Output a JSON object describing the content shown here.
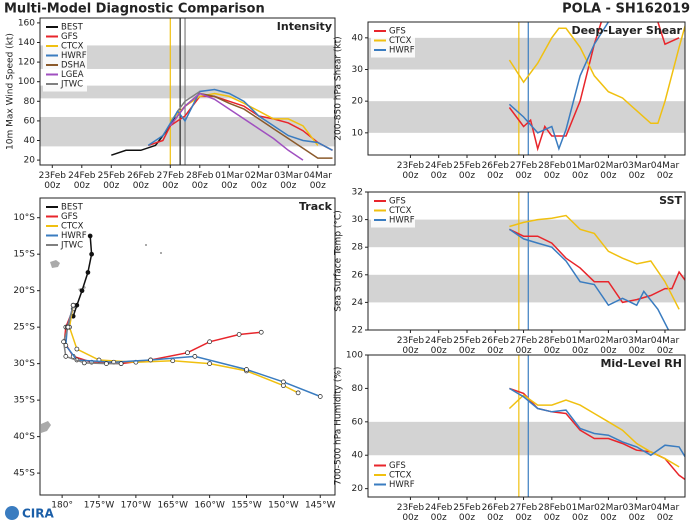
{
  "title": "Multi-Model Diagnostic Comparison",
  "storm": "POLA - SH162019",
  "logo": "CIRA",
  "chart_data": [
    {
      "type": "line",
      "title": "Intensity",
      "y_label": "10m Max Wind Speed (kt)",
      "legend": "upper left",
      "grid": false,
      "xlim": [
        "22Feb 14z",
        "04Mar 14z"
      ],
      "ylim": [
        15,
        165
      ],
      "yticks": [
        20,
        40,
        60,
        80,
        100,
        120,
        140,
        160
      ],
      "xticks": [
        "23Feb 00z",
        "24Feb 00z",
        "25Feb 00z",
        "26Feb 00z",
        "27Feb 00z",
        "28Feb 00z",
        "01Mar 00z",
        "02Mar 00z",
        "03Mar 00z",
        "04Mar 00z"
      ],
      "bands": [
        [
          34,
          64
        ],
        [
          83,
          96
        ],
        [
          113,
          137
        ]
      ],
      "vlines": [
        {
          "x": "27Feb 00z",
          "color": "#f0c010"
        },
        {
          "x": "27Feb 08z",
          "color": "#222222"
        },
        {
          "x": "27Feb 12z",
          "color": "#808080"
        }
      ],
      "series": [
        {
          "name": "BEST",
          "color": "#111111",
          "x": [
            "25Feb 00z",
            "25Feb 12z",
            "26Feb 00z",
            "26Feb 12z",
            "27Feb 00z",
            "27Feb 06z"
          ],
          "values": [
            25,
            30,
            30,
            35,
            55,
            70
          ]
        },
        {
          "name": "GFS",
          "color": "#e8252b",
          "x": [
            "26Feb 06z",
            "26Feb 18z",
            "27Feb 00z",
            "27Feb 12z",
            "28Feb 00z",
            "28Feb 12z",
            "01Mar 00z",
            "01Mar 12z",
            "02Mar 00z",
            "02Mar 12z",
            "03Mar 00z",
            "03Mar 12z",
            "04Mar 00z",
            "04Mar 12z"
          ],
          "values": [
            35,
            40,
            55,
            65,
            85,
            85,
            80,
            75,
            65,
            62,
            58,
            50,
            38,
            30
          ]
        },
        {
          "name": "CTCX",
          "color": "#f0c010",
          "x": [
            "27Feb 00z",
            "27Feb 12z",
            "28Feb 00z",
            "28Feb 12z",
            "01Mar 00z",
            "01Mar 12z",
            "02Mar 00z",
            "02Mar 12z",
            "03Mar 00z",
            "03Mar 12z",
            "04Mar 00z"
          ],
          "values": [
            60,
            75,
            85,
            88,
            85,
            78,
            70,
            62,
            62,
            55,
            35
          ]
        },
        {
          "name": "HWRF",
          "color": "#3a7cc0",
          "x": [
            "26Feb 06z",
            "26Feb 18z",
            "27Feb 06z",
            "27Feb 12z",
            "28Feb 00z",
            "28Feb 12z",
            "01Mar 00z",
            "01Mar 12z",
            "02Mar 00z",
            "02Mar 12z",
            "03Mar 00z",
            "03Mar 12z",
            "04Mar 00z",
            "04Mar 12z"
          ],
          "values": [
            35,
            45,
            70,
            60,
            90,
            92,
            88,
            80,
            65,
            55,
            45,
            40,
            38,
            30
          ]
        },
        {
          "name": "DSHA",
          "color": "#8b5a2b",
          "x": [
            "27Feb 00z",
            "27Feb 12z",
            "28Feb 00z",
            "28Feb 12z",
            "01Mar 00z",
            "01Mar 12z",
            "02Mar 00z",
            "02Mar 12z",
            "03Mar 00z",
            "03Mar 12z",
            "04Mar 00z",
            "04Mar 12z"
          ],
          "values": [
            55,
            75,
            88,
            85,
            78,
            72,
            62,
            52,
            42,
            32,
            22,
            22
          ]
        },
        {
          "name": "LGEA",
          "color": "#a050c0",
          "x": [
            "27Feb 00z",
            "27Feb 12z",
            "28Feb 00z",
            "28Feb 12z",
            "01Mar 00z",
            "01Mar 12z",
            "02Mar 00z",
            "02Mar 12z",
            "03Mar 00z",
            "03Mar 12z"
          ],
          "values": [
            55,
            75,
            88,
            82,
            72,
            62,
            52,
            42,
            30,
            20
          ]
        },
        {
          "name": "JTWC",
          "color": "#808080",
          "x": [
            "27Feb 06z",
            "27Feb 12z",
            "28Feb 00z"
          ],
          "values": [
            70,
            80,
            90
          ]
        }
      ]
    },
    {
      "type": "track",
      "title": "Track",
      "legend": "upper left",
      "grid": false,
      "xlim": [
        -183,
        -143
      ],
      "ylim": [
        -48,
        -7.3
      ],
      "xticks": [
        {
          "value": -180,
          "label": "180°"
        },
        {
          "value": -175,
          "label": "175°W"
        },
        {
          "value": -170,
          "label": "170°W"
        },
        {
          "value": -165,
          "label": "165°W"
        },
        {
          "value": -160,
          "label": "160°W"
        },
        {
          "value": -155,
          "label": "155°W"
        },
        {
          "value": -150,
          "label": "150°W"
        },
        {
          "value": -145,
          "label": "145°W"
        }
      ],
      "yticks": [
        {
          "value": -10,
          "label": "10°S"
        },
        {
          "value": -15,
          "label": "15°S"
        },
        {
          "value": -20,
          "label": "20°S"
        },
        {
          "value": -25,
          "label": "25°S"
        },
        {
          "value": -30,
          "label": "30°S"
        },
        {
          "value": -35,
          "label": "35°S"
        },
        {
          "value": -40,
          "label": "40°S"
        },
        {
          "value": -45,
          "label": "45°S"
        }
      ],
      "series": [
        {
          "name": "BEST",
          "color": "#111111",
          "x": [
            -176.2,
            -176.0,
            -176.5,
            -177.3,
            -178.0,
            -178.5
          ],
          "values": [
            -12.5,
            -15,
            -17.5,
            -20,
            -22,
            -23.5
          ]
        },
        {
          "name": "GFS",
          "color": "#e8252b",
          "x": [
            -178.5,
            -179.5,
            -179.7,
            -178.5,
            -176,
            -172,
            -168,
            -163,
            -160,
            -156,
            -153
          ],
          "values": [
            -22.5,
            -25,
            -27,
            -29,
            -29.8,
            -30,
            -29.5,
            -28.5,
            -27,
            -26,
            -25.7
          ]
        },
        {
          "name": "CTCX",
          "color": "#f0c010",
          "x": [
            -178.5,
            -179,
            -178,
            -175,
            -170,
            -165,
            -160,
            -155,
            -150,
            -148
          ],
          "values": [
            -22,
            -25,
            -28,
            -29.5,
            -29.8,
            -29.6,
            -30,
            -31,
            -33,
            -34
          ]
        },
        {
          "name": "HWRF",
          "color": "#3a7cc0",
          "x": [
            -178.5,
            -179.3,
            -179.5,
            -178,
            -173,
            -168,
            -162,
            -155,
            -150,
            -145
          ],
          "values": [
            -22,
            -25,
            -27.5,
            -29.5,
            -29.8,
            -29.5,
            -29,
            -30.8,
            -32.5,
            -34.5
          ]
        },
        {
          "name": "JTWC",
          "color": "#808080",
          "x": [
            -178.5,
            -179.2,
            -179.8,
            -179.5,
            -177,
            -174,
            -172
          ],
          "values": [
            -22,
            -25,
            -27,
            -29,
            -29.9,
            -30,
            -30
          ]
        }
      ]
    },
    {
      "type": "line",
      "title": "Deep-Layer Shear",
      "y_label": "200-850 hPa Shear (kt)",
      "legend": "upper left",
      "grid": false,
      "xlim": [
        "21Feb 12z",
        "04Mar 17z"
      ],
      "ylim": [
        3,
        45
      ],
      "yticks": [
        10,
        20,
        30,
        40
      ],
      "xticks": [
        "23Feb 00z",
        "24Feb 00z",
        "25Feb 00z",
        "26Feb 00z",
        "27Feb 00z",
        "28Feb 00z",
        "01Mar 00z",
        "02Mar 00z",
        "03Mar 00z",
        "04Mar 00z"
      ],
      "bands": [
        [
          10,
          20
        ],
        [
          30,
          40
        ]
      ],
      "vlines": [
        {
          "x": "26Feb 20z",
          "color": "#f0c010"
        },
        {
          "x": "27Feb 04z",
          "color": "#3a7cc0"
        }
      ],
      "series": [
        {
          "name": "GFS",
          "color": "#e8252b",
          "x": [
            "26Feb 12z",
            "27Feb 00z",
            "27Feb 06z",
            "27Feb 12z",
            "27Feb 18z",
            "28Feb 00z",
            "28Feb 12z",
            "01Mar 00z",
            "01Mar 12z",
            "01Mar 18z",
            "02Mar 12z",
            "03Mar 18z",
            "04Mar 00z",
            "04Mar 12z"
          ],
          "values": [
            18,
            12,
            14,
            5,
            12,
            9,
            9,
            20,
            38,
            45,
            null,
            45,
            38,
            40
          ]
        },
        {
          "name": "CTCX",
          "color": "#f0c010",
          "x": [
            "26Feb 12z",
            "27Feb 00z",
            "27Feb 12z",
            "28Feb 00z",
            "28Feb 06z",
            "28Feb 12z",
            "01Mar 00z",
            "01Mar 12z",
            "02Mar 00z",
            "02Mar 12z",
            "03Mar 00z",
            "03Mar 12z",
            "03Mar 18z",
            "04Mar 00z",
            "04Mar 12z",
            "04Mar 18z"
          ],
          "values": [
            33,
            26,
            32,
            40,
            43,
            43,
            37,
            28,
            23,
            21,
            17,
            13,
            13,
            20,
            37,
            45
          ]
        },
        {
          "name": "HWRF",
          "color": "#3a7cc0",
          "x": [
            "26Feb 12z",
            "27Feb 00z",
            "27Feb 12z",
            "28Feb 00z",
            "28Feb 06z",
            "28Feb 12z",
            "01Mar 00z",
            "01Mar 12z",
            "02Mar 00z"
          ],
          "values": [
            19,
            15,
            10,
            12,
            5,
            11,
            28,
            38,
            45
          ]
        }
      ]
    },
    {
      "type": "line",
      "title": "SST",
      "y_label": "Sea Surface Temp (°C)",
      "legend": "upper left",
      "grid": false,
      "xlim": [
        "21Feb 12z",
        "04Mar 17z"
      ],
      "ylim": [
        22,
        32
      ],
      "yticks": [
        22,
        24,
        26,
        28,
        30,
        32
      ],
      "xticks": [
        "23Feb 00z",
        "24Feb 00z",
        "25Feb 00z",
        "26Feb 00z",
        "27Feb 00z",
        "28Feb 00z",
        "01Mar 00z",
        "02Mar 00z",
        "03Mar 00z",
        "04Mar 00z"
      ],
      "bands": [
        [
          24,
          26
        ],
        [
          28,
          30
        ]
      ],
      "vlines": [
        {
          "x": "26Feb 20z",
          "color": "#f0c010"
        },
        {
          "x": "27Feb 04z",
          "color": "#3a7cc0"
        }
      ],
      "series": [
        {
          "name": "GFS",
          "color": "#e8252b",
          "x": [
            "26Feb 12z",
            "27Feb 00z",
            "27Feb 12z",
            "28Feb 00z",
            "28Feb 12z",
            "01Mar 00z",
            "01Mar 12z",
            "02Mar 00z",
            "02Mar 12z",
            "03Mar 00z",
            "03Mar 12z",
            "04Mar 00z",
            "04Mar 06z",
            "04Mar 12z",
            "04Mar 18z"
          ],
          "values": [
            29.3,
            28.8,
            28.8,
            28.3,
            27.2,
            26.5,
            25.5,
            25.5,
            24,
            24.2,
            24.5,
            25,
            25,
            26.2,
            25.5
          ]
        },
        {
          "name": "CTCX",
          "color": "#f0c010",
          "x": [
            "26Feb 12z",
            "27Feb 00z",
            "27Feb 12z",
            "28Feb 00z",
            "28Feb 12z",
            "01Mar 00z",
            "01Mar 12z",
            "02Mar 00z",
            "02Mar 12z",
            "03Mar 00z",
            "03Mar 12z",
            "04Mar 00z",
            "04Mar 12z"
          ],
          "values": [
            29.5,
            29.8,
            30,
            30.1,
            30.3,
            29.3,
            29,
            27.7,
            27.2,
            26.8,
            27,
            25.5,
            23.5
          ]
        },
        {
          "name": "HWRF",
          "color": "#3a7cc0",
          "x": [
            "26Feb 12z",
            "27Feb 00z",
            "27Feb 12z",
            "28Feb 00z",
            "28Feb 12z",
            "01Mar 00z",
            "01Mar 12z",
            "02Mar 00z",
            "02Mar 12z",
            "03Mar 00z",
            "03Mar 06z",
            "03Mar 18z",
            "04Mar 06z"
          ],
          "values": [
            29.3,
            28.6,
            28.3,
            28,
            27,
            25.5,
            25.3,
            23.8,
            24.3,
            23.8,
            24.8,
            23.5,
            21.5
          ]
        }
      ]
    },
    {
      "type": "line",
      "title": "Mid-Level RH",
      "y_label": "700-500 hPa Humidity (%)",
      "legend": "lower left",
      "grid": false,
      "xlim": [
        "21Feb 12z",
        "04Mar 17z"
      ],
      "ylim": [
        15,
        100
      ],
      "yticks": [
        20,
        40,
        60,
        80,
        100
      ],
      "xticks": [
        "23Feb 00z",
        "24Feb 00z",
        "25Feb 00z",
        "26Feb 00z",
        "27Feb 00z",
        "28Feb 00z",
        "01Mar 00z",
        "02Mar 00z",
        "03Mar 00z",
        "04Mar 00z"
      ],
      "bands": [
        [
          40,
          60
        ]
      ],
      "vlines": [
        {
          "x": "26Feb 20z",
          "color": "#f0c010"
        },
        {
          "x": "27Feb 04z",
          "color": "#3a7cc0"
        }
      ],
      "series": [
        {
          "name": "GFS",
          "color": "#e8252b",
          "x": [
            "26Feb 12z",
            "27Feb 00z",
            "27Feb 12z",
            "28Feb 00z",
            "28Feb 12z",
            "01Mar 00z",
            "01Mar 12z",
            "02Mar 00z",
            "02Mar 12z",
            "03Mar 00z",
            "03Mar 12z",
            "04Mar 00z",
            "04Mar 12z",
            "04Mar 18z"
          ],
          "values": [
            80,
            77,
            68,
            66,
            65,
            55,
            50,
            50,
            47,
            43,
            42,
            38,
            28,
            25
          ]
        },
        {
          "name": "CTCX",
          "color": "#f0c010",
          "x": [
            "26Feb 12z",
            "27Feb 00z",
            "27Feb 12z",
            "28Feb 00z",
            "28Feb 12z",
            "01Mar 00z",
            "01Mar 12z",
            "02Mar 00z",
            "02Mar 12z",
            "03Mar 00z",
            "03Mar 12z",
            "04Mar 00z",
            "04Mar 12z"
          ],
          "values": [
            68,
            76,
            70,
            70,
            73,
            70,
            65,
            60,
            55,
            47,
            42,
            38,
            33
          ]
        },
        {
          "name": "HWRF",
          "color": "#3a7cc0",
          "x": [
            "26Feb 12z",
            "27Feb 00z",
            "27Feb 12z",
            "28Feb 00z",
            "28Feb 12z",
            "01Mar 00z",
            "01Mar 12z",
            "02Mar 00z",
            "02Mar 12z",
            "03Mar 00z",
            "03Mar 12z",
            "04Mar 00z",
            "04Mar 12z",
            "04Mar 18z"
          ],
          "values": [
            80,
            75,
            68,
            66,
            67,
            56,
            53,
            52,
            48,
            45,
            40,
            46,
            45,
            38
          ]
        }
      ]
    }
  ]
}
